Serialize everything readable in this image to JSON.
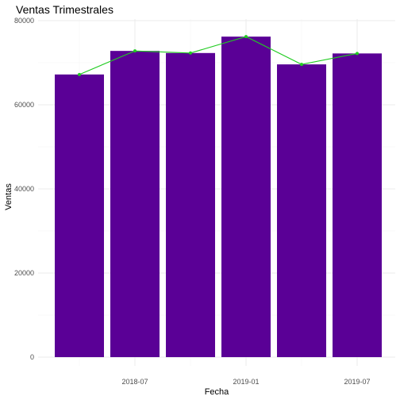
{
  "chart_data": {
    "type": "bar",
    "title": "Ventas Trimestrales",
    "xlabel": "Fecha",
    "ylabel": "Ventas",
    "ylim": [
      0,
      80000
    ],
    "y_ticks": [
      0,
      20000,
      40000,
      60000,
      80000
    ],
    "y_tick_labels": [
      "0",
      "20000",
      "40000",
      "60000",
      "80000"
    ],
    "x_tick_labels": [
      {
        "date": "2018-07",
        "label": "2018-07"
      },
      {
        "date": "2019-01",
        "label": "2019-01"
      },
      {
        "date": "2019-07",
        "label": "2019-07"
      }
    ],
    "grid": true,
    "x": [
      "2018-04",
      "2018-07",
      "2018-10",
      "2019-01",
      "2019-04",
      "2019-07"
    ],
    "series": [
      {
        "kind": "bar",
        "values": [
          67200,
          72800,
          72300,
          76200,
          69600,
          72200
        ],
        "color": "#5a0096"
      },
      {
        "kind": "line",
        "values": [
          67200,
          72800,
          72300,
          76200,
          69600,
          72200
        ],
        "color": "#22cc22",
        "markers": true
      }
    ]
  }
}
